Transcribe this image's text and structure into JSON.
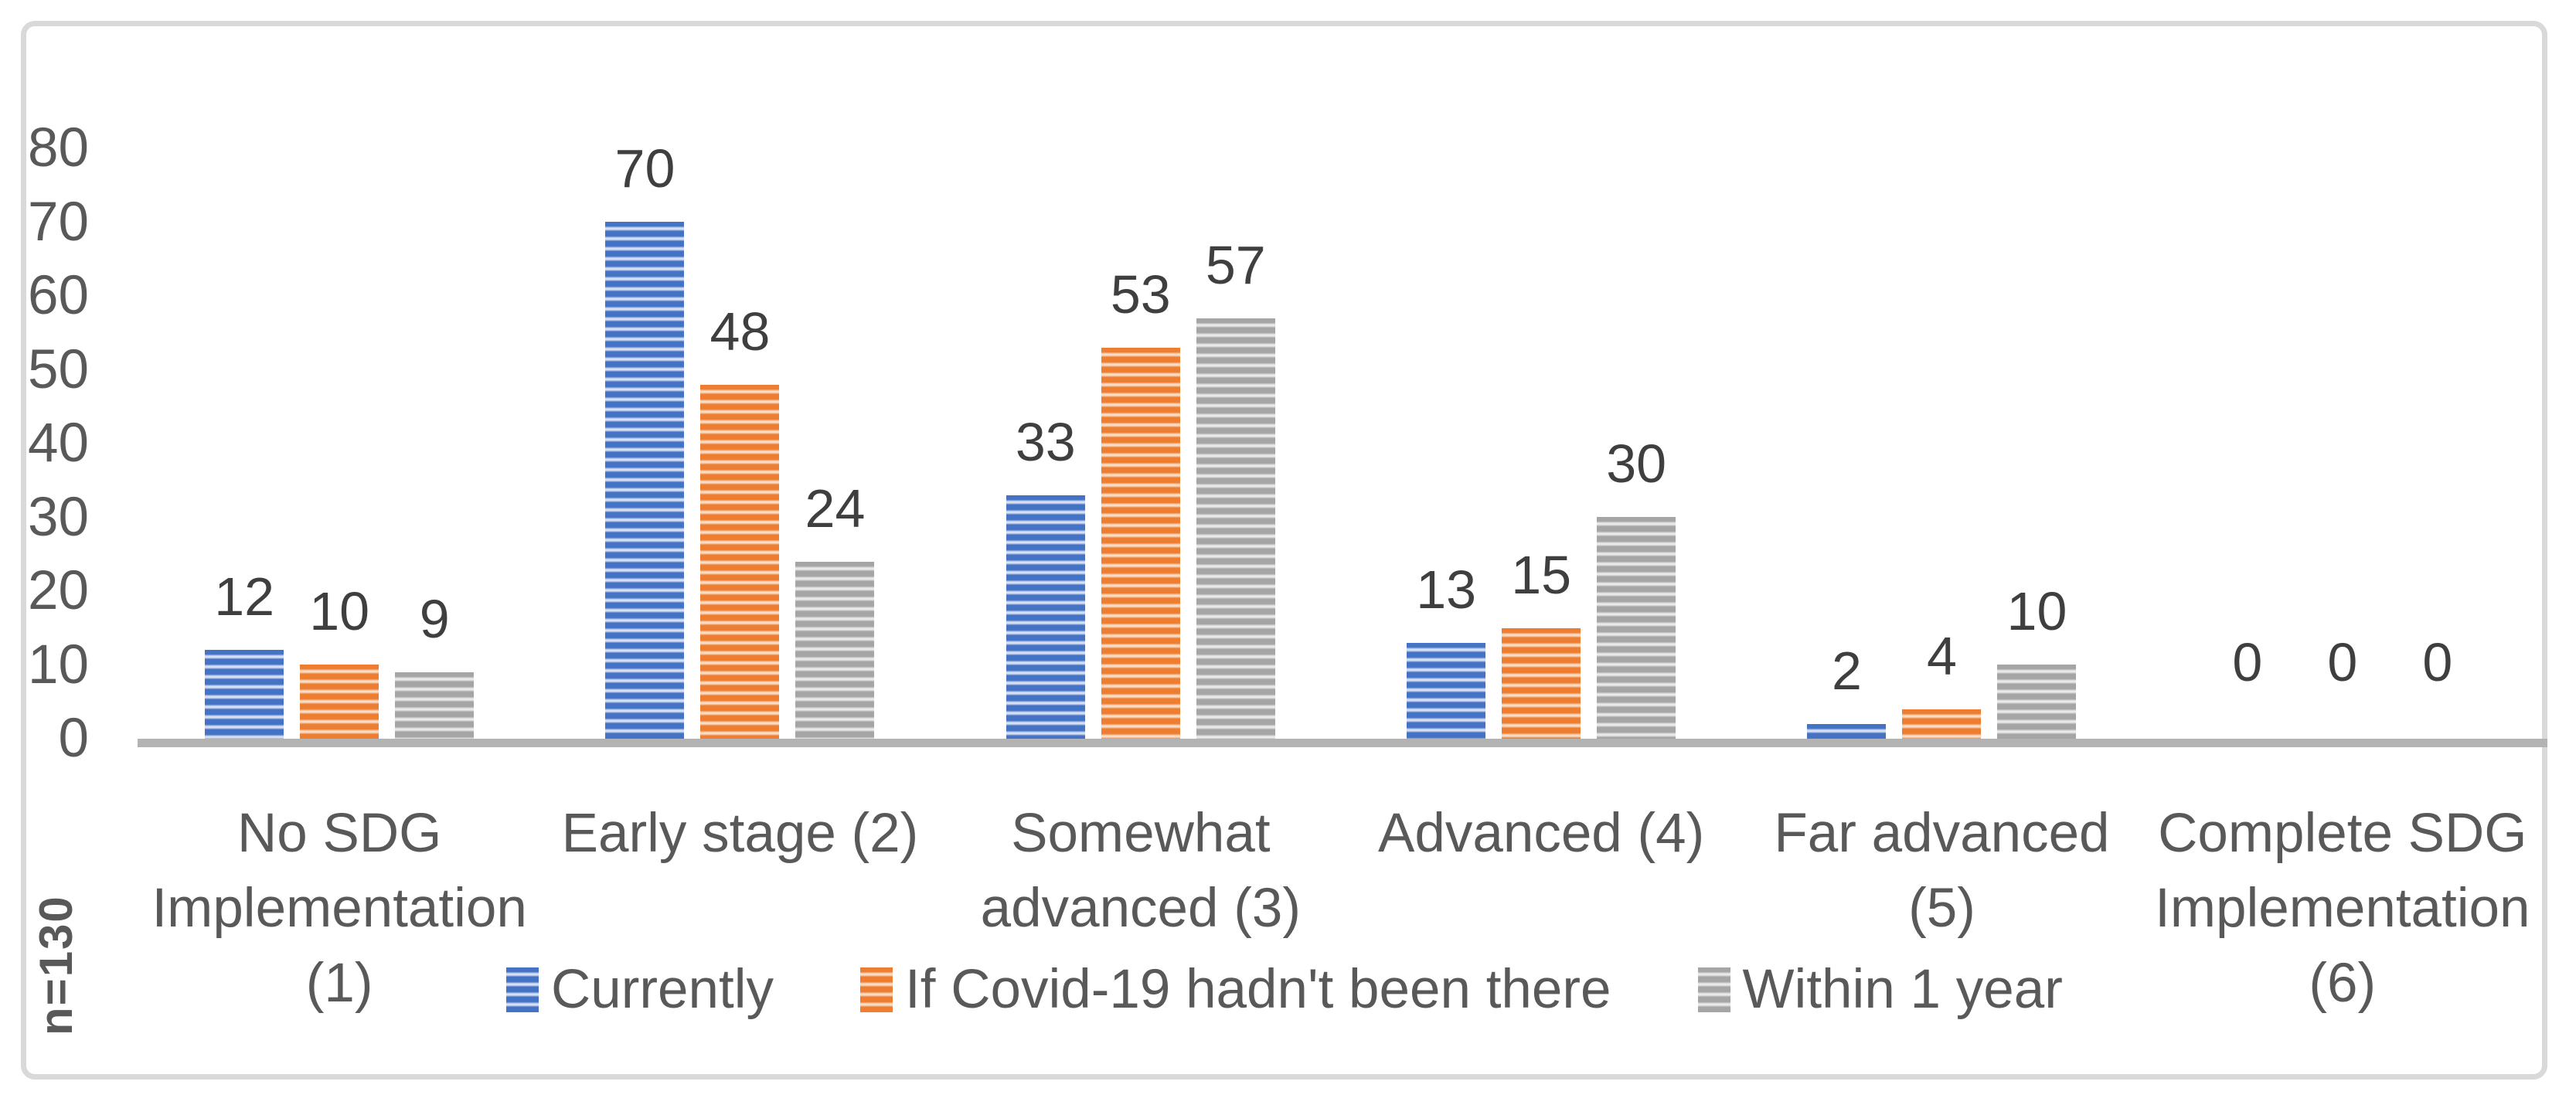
{
  "chart_data": {
    "type": "bar",
    "title": "",
    "annotation": "n=130",
    "categories": [
      "No SDG\nImplementation\n(1)",
      "Early stage (2)",
      "Somewhat\nadvanced (3)",
      "Advanced (4)",
      "Far advanced (5)",
      "Complete SDG\nImplementation\n(6)"
    ],
    "series": [
      {
        "name": "Currently",
        "color": "#4472C4",
        "stripe_light": "#d6dff3",
        "values": [
          12,
          70,
          33,
          13,
          2,
          0
        ]
      },
      {
        "name": "If Covid-19 hadn't been there",
        "color": "#ED7D31",
        "stripe_light": "#f9dcc6",
        "values": [
          10,
          48,
          53,
          15,
          4,
          0
        ]
      },
      {
        "name": "Within 1 year",
        "color": "#A5A5A5",
        "stripe_light": "#e9e9e9",
        "values": [
          9,
          24,
          57,
          30,
          10,
          0
        ]
      }
    ],
    "ylim": [
      0,
      80
    ],
    "yticks": [
      0,
      10,
      20,
      30,
      40,
      50,
      60,
      70,
      80
    ],
    "grid": false,
    "legend_position": "bottom",
    "data_labels": true,
    "pattern": "horizontal-stripes",
    "axis_line_color": "#b3b3b3",
    "frame_border_color": "#d9d9d9",
    "text_color": "#595959",
    "data_label_color": "#3f3f3f"
  }
}
